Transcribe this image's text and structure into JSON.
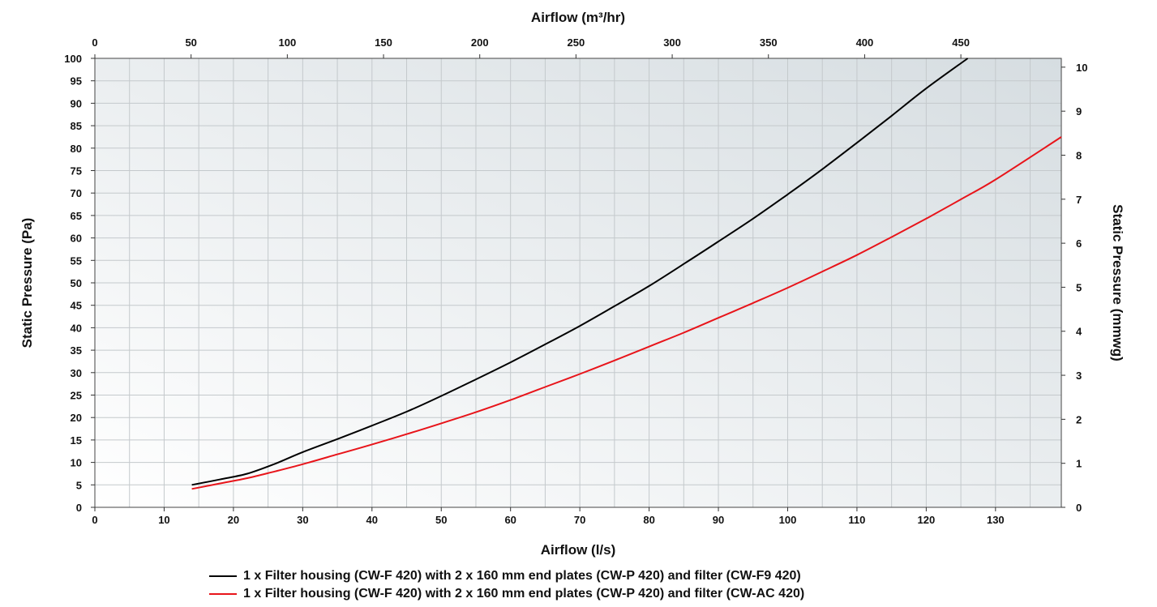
{
  "chart_data": {
    "type": "line",
    "x_bottom_label": "Airflow (l/s)",
    "x_top_label": "Airflow (m³/hr)",
    "y_left_label": "Static Pressure (Pa)",
    "y_right_label": "Static Pressure (mmwg)",
    "xlim": [
      0,
      139.5
    ],
    "ylim": [
      0,
      100
    ],
    "x_top_lim": [
      0,
      502.2
    ],
    "y_right_lim": [
      0,
      10.2
    ],
    "x_bottom_ticks": [
      0,
      10,
      20,
      30,
      40,
      50,
      60,
      70,
      80,
      90,
      100,
      110,
      120,
      130
    ],
    "x_top_ticks": [
      0,
      50,
      100,
      150,
      200,
      250,
      300,
      350,
      400,
      450
    ],
    "y_left_ticks": [
      0,
      5,
      10,
      15,
      20,
      25,
      30,
      35,
      40,
      45,
      50,
      55,
      60,
      65,
      70,
      75,
      80,
      85,
      90,
      95,
      100
    ],
    "y_right_ticks": [
      0,
      1,
      2,
      3,
      4,
      5,
      6,
      7,
      8,
      9,
      10
    ],
    "grid": true,
    "legend_position": "bottom",
    "series": [
      {
        "name": "1 x Filter housing (CW-F 420) with 2 x 160 mm end plates (CW-P 420) and filter (CW-F9 420)",
        "color": "#000000",
        "x": [
          14,
          18,
          22,
          26,
          30,
          35,
          40,
          45,
          50,
          55,
          60,
          65,
          70,
          75,
          80,
          85,
          90,
          95,
          100,
          105,
          110,
          115,
          120,
          126
        ],
        "y": [
          5,
          6.2,
          7.5,
          9.7,
          12.3,
          15.2,
          18.2,
          21.3,
          24.8,
          28.5,
          32.3,
          36.3,
          40.4,
          44.8,
          49.3,
          54.2,
          59.2,
          64.3,
          69.7,
          75.3,
          81.2,
          87.2,
          93.3,
          100.5
        ]
      },
      {
        "name": "1 x Filter housing (CW-F 420) with 2 x 160 mm end plates (CW-P 420) and filter (CW-AC 420)",
        "color": "#e8141a",
        "x": [
          14,
          18,
          22,
          26,
          30,
          35,
          40,
          45,
          50,
          55,
          60,
          65,
          70,
          75,
          80,
          85,
          90,
          95,
          100,
          105,
          110,
          115,
          120,
          125,
          130,
          139.5
        ],
        "y": [
          4.1,
          5.3,
          6.5,
          8,
          9.6,
          11.8,
          14,
          16.3,
          18.7,
          21.2,
          23.9,
          26.8,
          29.7,
          32.7,
          35.8,
          38.9,
          42.2,
          45.5,
          48.9,
          52.5,
          56.2,
          60.2,
          64.3,
          68.6,
          73,
          82.5
        ]
      }
    ]
  }
}
